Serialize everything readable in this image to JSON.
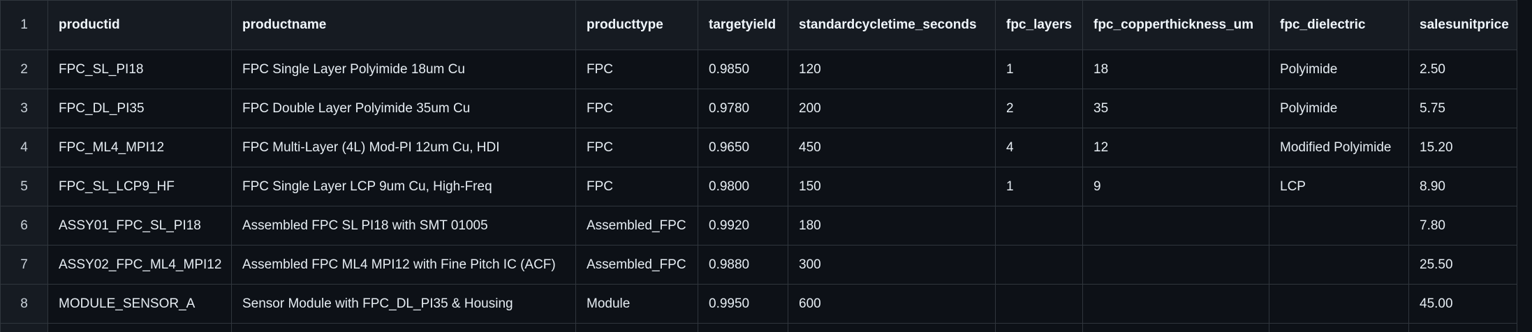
{
  "columns": [
    "productid",
    "productname",
    "producttype",
    "targetyield",
    "standardcycletime_seconds",
    "fpc_layers",
    "fpc_copperthickness_um",
    "fpc_dielectric",
    "salesunitprice"
  ],
  "header_row_number": "1",
  "rows": [
    {
      "num": "2",
      "cells": [
        "FPC_SL_PI18",
        "FPC Single Layer Polyimide 18um Cu",
        "FPC",
        "0.9850",
        "120",
        "1",
        "18",
        "Polyimide",
        "2.50"
      ]
    },
    {
      "num": "3",
      "cells": [
        "FPC_DL_PI35",
        "FPC Double Layer Polyimide 35um Cu",
        "FPC",
        "0.9780",
        "200",
        "2",
        "35",
        "Polyimide",
        "5.75"
      ]
    },
    {
      "num": "4",
      "cells": [
        "FPC_ML4_MPI12",
        "FPC Multi-Layer (4L) Mod-PI 12um Cu, HDI",
        "FPC",
        "0.9650",
        "450",
        "4",
        "12",
        "Modified Polyimide",
        "15.20"
      ]
    },
    {
      "num": "5",
      "cells": [
        "FPC_SL_LCP9_HF",
        "FPC Single Layer LCP 9um Cu, High-Freq",
        "FPC",
        "0.9800",
        "150",
        "1",
        "9",
        "LCP",
        "8.90"
      ]
    },
    {
      "num": "6",
      "cells": [
        "ASSY01_FPC_SL_PI18",
        "Assembled FPC SL PI18 with SMT 01005",
        "Assembled_FPC",
        "0.9920",
        "180",
        "",
        "",
        "",
        "7.80"
      ]
    },
    {
      "num": "7",
      "cells": [
        "ASSY02_FPC_ML4_MPI12",
        "Assembled FPC ML4 MPI12 with Fine Pitch IC (ACF)",
        "Assembled_FPC",
        "0.9880",
        "300",
        "",
        "",
        "",
        "25.50"
      ]
    },
    {
      "num": "8",
      "cells": [
        "MODULE_SENSOR_A",
        "Sensor Module with FPC_DL_PI35 & Housing",
        "Module",
        "0.9950",
        "600",
        "",
        "",
        "",
        "45.00"
      ]
    }
  ]
}
